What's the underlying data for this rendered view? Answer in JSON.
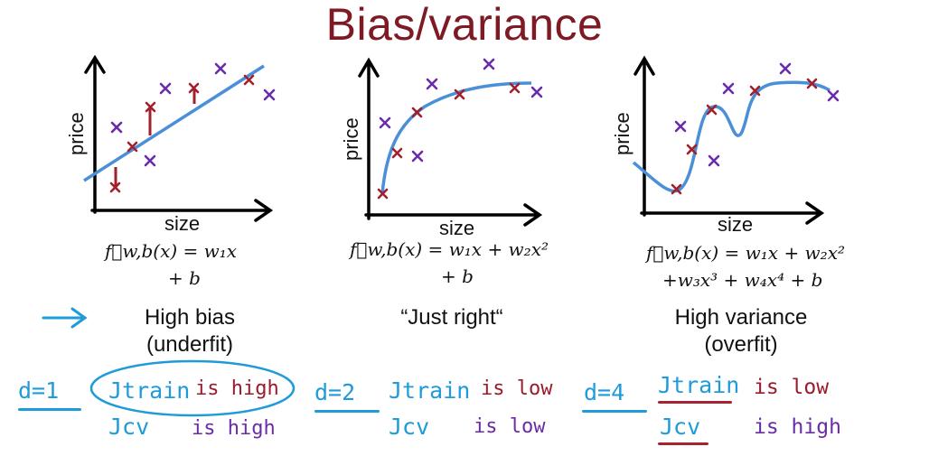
{
  "title": "Bias/variance",
  "panels": [
    {
      "ylabel": "price",
      "xlabel": "size",
      "formula_line1": "f⃗w,b(x) = w₁x",
      "formula_line2": "+ b",
      "caption_line1": "High bias",
      "caption_line2": "(underfit)"
    },
    {
      "ylabel": "price",
      "xlabel": "size",
      "formula_line1": "f⃗w,b(x) = w₁x + w₂x²",
      "formula_line2": "+ b",
      "caption_line1": "“Just right“",
      "caption_line2": ""
    },
    {
      "ylabel": "price",
      "xlabel": "size",
      "formula_line1": "f⃗w,b(x) = w₁x + w₂x²",
      "formula_line2": "+w₃x³ + w₄x⁴ + b",
      "caption_line1": "High variance",
      "caption_line2": "(overfit)"
    }
  ],
  "notes": [
    {
      "degree": "d=1",
      "jtrain": "Jtrain",
      "jtrain_status": "is high",
      "jcv": "Jcv",
      "jcv_status": "is high"
    },
    {
      "degree": "d=2",
      "jtrain": "Jtrain",
      "jtrain_status": "is low",
      "jcv": "Jcv",
      "jcv_status": "is low"
    },
    {
      "degree": "d=4",
      "jtrain": "Jtrain",
      "jtrain_status": "is low",
      "jcv": "Jcv",
      "jcv_status": "is high"
    }
  ],
  "colors": {
    "title": "#7e1a24",
    "handwriting_blue": "#1e9bd8",
    "handwriting_red": "#9b1b2b",
    "handwriting_purple": "#6a2ca8",
    "fit_curve": "#4a8fd8",
    "train_marker": "#a0202c",
    "cv_marker": "#6a2ca8"
  },
  "icons": {
    "pointer": "arrow-right-icon"
  }
}
